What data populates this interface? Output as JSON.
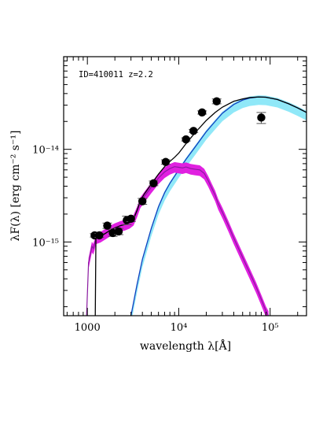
{
  "chart_data": {
    "type": "scatter",
    "title": "",
    "annotation": "ID=410011  z=2.2",
    "xlabel": "wavelength λ[Å]",
    "ylabel": "λF(λ) [erg cm⁻² s⁻¹]",
    "xscale": "log",
    "yscale": "log",
    "xlim": [
      550,
      250000
    ],
    "ylim": [
      1.6e-16,
      1e-13
    ],
    "x_ticks": [
      {
        "value": 1000,
        "label": "1000"
      },
      {
        "value": 10000,
        "label": "10⁴"
      },
      {
        "value": 100000,
        "label": "10⁵"
      }
    ],
    "y_ticks": [
      {
        "value": 1e-15,
        "label": "10⁻¹⁵"
      },
      {
        "value": 1e-14,
        "label": "10⁻¹⁴"
      }
    ],
    "grid": false,
    "legend": "none",
    "colors": {
      "observed": "#000000",
      "total_model": "#000000",
      "stellar_band": "#e020e0",
      "stellar_line": "#8a1aa0",
      "dust_band": "#90e8f8",
      "dust_line": "#1040c0"
    },
    "observed_points": [
      {
        "x": 1200,
        "y": 1.18e-15,
        "err": 5e-17
      },
      {
        "x": 1350,
        "y": 1.18e-15,
        "err": 6e-17
      },
      {
        "x": 1650,
        "y": 1.5e-15,
        "err": 1e-16
      },
      {
        "x": 1900,
        "y": 1.25e-15,
        "err": 1e-16
      },
      {
        "x": 2200,
        "y": 1.3e-15,
        "err": 1e-16
      },
      {
        "x": 2700,
        "y": 1.72e-15,
        "err": 1.8e-16
      },
      {
        "x": 3000,
        "y": 1.78e-15,
        "err": 1.2e-16
      },
      {
        "x": 4000,
        "y": 2.75e-15,
        "err": 2e-16
      },
      {
        "x": 5300,
        "y": 4.3e-15,
        "err": 2.5e-16
      },
      {
        "x": 7200,
        "y": 7.3e-15,
        "err": 4e-16
      },
      {
        "x": 12000,
        "y": 1.28e-14,
        "err": 5e-16
      },
      {
        "x": 14500,
        "y": 1.58e-14,
        "err": 6e-16
      },
      {
        "x": 18000,
        "y": 2.5e-14,
        "err": 1e-15
      },
      {
        "x": 26000,
        "y": 3.3e-14,
        "err": 2e-15
      },
      {
        "x": 80000,
        "y": 2.2e-14,
        "err": 3e-15
      }
    ],
    "total_model": [
      [
        1220,
        1.6e-16
      ],
      [
        1240,
        1.1e-15
      ],
      [
        1400,
        1.15e-15
      ],
      [
        1600,
        1.25e-15
      ],
      [
        1800,
        1.35e-15
      ],
      [
        2000,
        1.42e-15
      ],
      [
        2300,
        1.5e-15
      ],
      [
        2600,
        1.55e-15
      ],
      [
        2900,
        1.62e-15
      ],
      [
        3200,
        1.78e-15
      ],
      [
        3500,
        2.2e-15
      ],
      [
        3800,
        2.8e-15
      ],
      [
        4200,
        3.3e-15
      ],
      [
        5000,
        4.2e-15
      ],
      [
        6000,
        5.4e-15
      ],
      [
        7000,
        6.5e-15
      ],
      [
        8000,
        7.4e-15
      ],
      [
        9000,
        8.2e-15
      ],
      [
        10000,
        9.1e-15
      ],
      [
        12000,
        1.15e-14
      ],
      [
        15000,
        1.5e-14
      ],
      [
        20000,
        2.05e-14
      ],
      [
        25000,
        2.5e-14
      ],
      [
        30000,
        2.85e-14
      ],
      [
        40000,
        3.3e-14
      ],
      [
        50000,
        3.5e-14
      ],
      [
        60000,
        3.62e-14
      ],
      [
        75000,
        3.68e-14
      ],
      [
        90000,
        3.65e-14
      ],
      [
        120000,
        3.45e-14
      ],
      [
        160000,
        3.1e-14
      ],
      [
        200000,
        2.8e-14
      ],
      [
        250000,
        2.5e-14
      ]
    ],
    "stellar_model": [
      [
        980,
        1.6e-16
      ],
      [
        1030,
        6e-16
      ],
      [
        1080,
        7.5e-16
      ],
      [
        1120,
        9e-16
      ],
      [
        1160,
        8.5e-16
      ],
      [
        1200,
        9.5e-16
      ],
      [
        1240,
        1.1e-15
      ],
      [
        1400,
        1.15e-15
      ],
      [
        1600,
        1.25e-15
      ],
      [
        1800,
        1.35e-15
      ],
      [
        2000,
        1.42e-15
      ],
      [
        2300,
        1.5e-15
      ],
      [
        2600,
        1.55e-15
      ],
      [
        2900,
        1.62e-15
      ],
      [
        3200,
        1.75e-15
      ],
      [
        3500,
        2.15e-15
      ],
      [
        3800,
        2.7e-15
      ],
      [
        4200,
        3.1e-15
      ],
      [
        5000,
        3.9e-15
      ],
      [
        6000,
        4.9e-15
      ],
      [
        7000,
        5.7e-15
      ],
      [
        8000,
        6.2e-15
      ],
      [
        9000,
        6.5e-15
      ],
      [
        10000,
        6.4e-15
      ],
      [
        11000,
        6.3e-15
      ],
      [
        12000,
        6.45e-15
      ],
      [
        13500,
        6.2e-15
      ],
      [
        15000,
        6.1e-15
      ],
      [
        17000,
        6e-15
      ],
      [
        19000,
        5.5e-15
      ],
      [
        21000,
        4.6e-15
      ],
      [
        23000,
        3.8e-15
      ],
      [
        25000,
        3.2e-15
      ],
      [
        27000,
        2.6e-15
      ],
      [
        30000,
        2.1e-15
      ],
      [
        35000,
        1.5e-15
      ],
      [
        40000,
        1.1e-15
      ],
      [
        50000,
        6.8e-16
      ],
      [
        60000,
        4.6e-16
      ],
      [
        70000,
        3.3e-16
      ],
      [
        80000,
        2.4e-16
      ],
      [
        90000,
        1.8e-16
      ],
      [
        96000,
        1.6e-16
      ]
    ],
    "dust_model": [
      [
        3000,
        1.6e-16
      ],
      [
        3500,
        3.5e-16
      ],
      [
        4000,
        6.5e-16
      ],
      [
        5000,
        1.4e-15
      ],
      [
        6000,
        2.4e-15
      ],
      [
        7000,
        3.4e-15
      ],
      [
        8000,
        4.3e-15
      ],
      [
        10000,
        6e-15
      ],
      [
        12000,
        7.8e-15
      ],
      [
        15000,
        1.05e-14
      ],
      [
        20000,
        1.55e-14
      ],
      [
        25000,
        2e-14
      ],
      [
        30000,
        2.45e-14
      ],
      [
        40000,
        3.05e-14
      ],
      [
        50000,
        3.4e-14
      ],
      [
        60000,
        3.58e-14
      ],
      [
        75000,
        3.68e-14
      ],
      [
        90000,
        3.65e-14
      ],
      [
        120000,
        3.45e-14
      ],
      [
        160000,
        3.1e-14
      ],
      [
        200000,
        2.8e-14
      ],
      [
        250000,
        2.5e-14
      ]
    ]
  }
}
